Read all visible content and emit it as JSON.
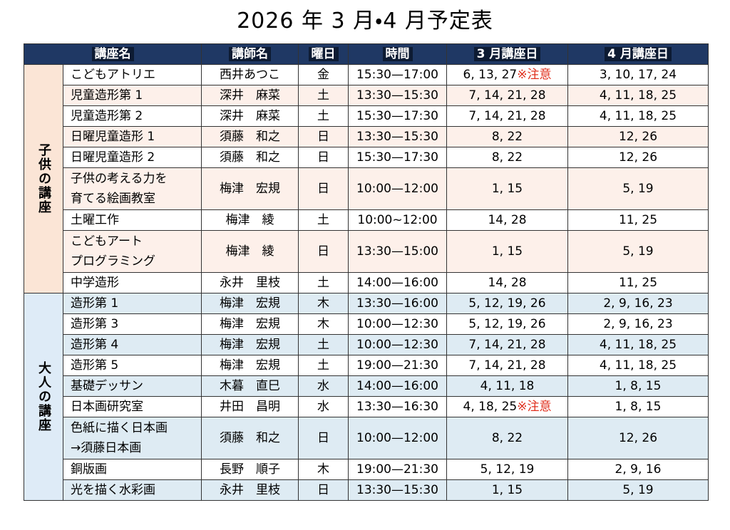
{
  "title": "2026 年 3 月・4 月予定表",
  "header": [
    "講座名",
    "講師名",
    "曜日",
    "時間",
    "3 月講座日",
    "4 月講座日"
  ],
  "groups": [
    {
      "label": "子供の講座",
      "rows": [
        {
          "name": "こどもアトリエ",
          "teacher": "西井あつこ",
          "day": "金",
          "time": "15:30—17:00",
          "march": "6, 13, 27",
          "march_note": "※注意",
          "april": "3, 10, 17, 24"
        },
        {
          "name": "児童造形第 1",
          "teacher": "深井　麻菜",
          "day": "土",
          "time": "13:30—15:30",
          "march": "7, 14, 21, 28",
          "april": "4, 11, 18, 25"
        },
        {
          "name": "児童造形第 2",
          "teacher": "深井　麻菜",
          "day": "土",
          "time": "15:30—17:30",
          "march": "7, 14, 21, 28",
          "april": "4, 11, 18, 25"
        },
        {
          "name": "日曜児童造形 1",
          "teacher": "須藤　和之",
          "day": "日",
          "time": "13:30—15:30",
          "march": "8, 22",
          "april": "12, 26"
        },
        {
          "name": "日曜児童造形 2",
          "teacher": "須藤　和之",
          "day": "日",
          "time": "15:30—17:30",
          "march": "8, 22",
          "april": "12, 26"
        },
        {
          "name": "子供の考える力を\n育てる絵画教室",
          "teacher": "梅津　宏規",
          "day": "日",
          "time": "10:00—12:00",
          "march": "1, 15",
          "april": "5, 19"
        },
        {
          "name": "土曜工作",
          "teacher": "梅津　綾",
          "day": "土",
          "time": "10:00~12:00",
          "march": "14, 28",
          "april": "11, 25"
        },
        {
          "name": "こどもアート\nプログラミング",
          "teacher": "梅津　綾",
          "day": "日",
          "time": "13:30—15:00",
          "march": "1, 15",
          "april": "5, 19"
        },
        {
          "name": "中学造形",
          "teacher": "永井　里枝",
          "day": "土",
          "time": "14:00—16:00",
          "march": "14, 28",
          "april": "11, 25"
        }
      ]
    },
    {
      "label": "大人の講座",
      "rows": [
        {
          "name": "造形第 1",
          "teacher": "梅津　宏規",
          "day": "木",
          "time": "13:30—16:00",
          "march": "5, 12, 19, 26",
          "april": "2, 9, 16, 23"
        },
        {
          "name": "造形第 3",
          "teacher": "梅津　宏規",
          "day": "木",
          "time": "10:00—12:30",
          "march": "5, 12, 19, 26",
          "april": "2, 9, 16, 23"
        },
        {
          "name": "造形第 4",
          "teacher": "梅津　宏規",
          "day": "土",
          "time": "10:00—12:30",
          "march": "7, 14, 21, 28",
          "april": "4, 11, 18, 25"
        },
        {
          "name": "造形第 5",
          "teacher": "梅津　宏規",
          "day": "土",
          "time": "19:00—21:30",
          "march": "7, 14, 21, 28",
          "april": "4, 11, 18, 25"
        },
        {
          "name": "基礎デッサン",
          "teacher": "木暮　直巳",
          "day": "水",
          "time": "14:00—16:00",
          "march": "4, 11, 18",
          "april": "1, 8, 15"
        },
        {
          "name": "日本画研究室",
          "teacher": "井田　昌明",
          "day": "水",
          "time": "13:30—16:30",
          "march": "4, 18, 25",
          "march_note": "※注意",
          "april": "1, 8, 15"
        },
        {
          "name": "色紙に描く日本画\n→須藤日本画",
          "teacher": "須藤　和之",
          "day": "日",
          "time": "10:00—12:00",
          "march": "8, 22",
          "april": "12, 26"
        },
        {
          "name": "銅版画",
          "teacher": "長野　順子",
          "day": "木",
          "time": "19:00—21:30",
          "march": "5, 12, 19",
          "april": "2, 9, 16"
        },
        {
          "name": "光を描く水彩画",
          "teacher": "永井　里枝",
          "day": "日",
          "time": "13:30—15:30",
          "march": "1, 15",
          "april": "5, 19"
        }
      ]
    }
  ]
}
